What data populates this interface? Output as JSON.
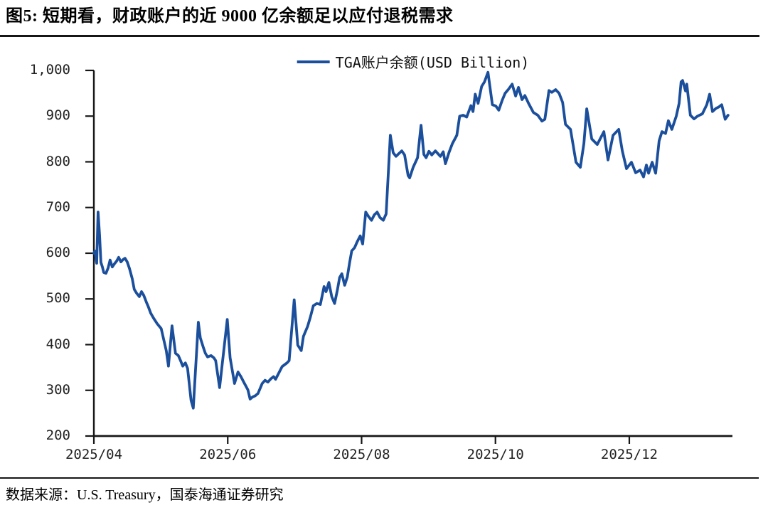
{
  "page": {
    "title": "图5: 短期看，财政账户的近 9000 亿余额足以应付退税需求",
    "source": "数据来源：U.S. Treasury，国泰海通证券研究"
  },
  "legend": {
    "label": "TGA账户余额(USD Billion)"
  },
  "colors": {
    "line": "#1B4F9C",
    "axis": "#161616",
    "tick_label": "#222222"
  },
  "chart_data": {
    "type": "line",
    "title": "图5: 短期看，财政账户的近 9000 亿余额足以应付退税需求",
    "xlabel": "",
    "ylabel": "",
    "grid": false,
    "legend_position": "top-center",
    "x_axis": {
      "unit": "days_since_2025-04-01",
      "range": [
        0,
        291
      ],
      "ticks": [
        {
          "day": 0,
          "label": "2025/04"
        },
        {
          "day": 61,
          "label": "2025/06"
        },
        {
          "day": 122,
          "label": "2025/08"
        },
        {
          "day": 183,
          "label": "2025/10"
        },
        {
          "day": 244,
          "label": "2025/12"
        }
      ]
    },
    "y_axis": {
      "range": [
        200,
        1000
      ],
      "tick_step": 100,
      "tick_labels": [
        "200",
        "300",
        "400",
        "500",
        "600",
        "700",
        "800",
        "900",
        "1,000"
      ]
    },
    "series": [
      {
        "name": "TGA账户余额(USD Billion)",
        "color": "#1B4F9C",
        "points": [
          [
            0,
            600
          ],
          [
            0.5,
            605
          ],
          [
            1.3,
            578
          ],
          [
            1.9,
            690
          ],
          [
            2.6,
            640
          ],
          [
            3.2,
            580
          ],
          [
            3.9,
            570
          ],
          [
            4.5,
            558
          ],
          [
            5.5,
            556
          ],
          [
            6.5,
            568
          ],
          [
            7.4,
            585
          ],
          [
            8.4,
            570
          ],
          [
            9.4,
            577
          ],
          [
            10.4,
            583
          ],
          [
            11.3,
            591
          ],
          [
            12.3,
            581
          ],
          [
            13.3,
            586
          ],
          [
            14.2,
            589
          ],
          [
            15.2,
            581
          ],
          [
            16.2,
            567
          ],
          [
            17.5,
            544
          ],
          [
            18.4,
            521
          ],
          [
            19.4,
            513
          ],
          [
            20.7,
            505
          ],
          [
            21.7,
            516
          ],
          [
            22.7,
            508
          ],
          [
            23.9,
            493
          ],
          [
            24.9,
            482
          ],
          [
            25.9,
            469
          ],
          [
            27.2,
            458
          ],
          [
            28.8,
            446
          ],
          [
            30.7,
            435
          ],
          [
            33,
            387
          ],
          [
            34,
            353
          ],
          [
            35.6,
            441
          ],
          [
            37.2,
            381
          ],
          [
            38.5,
            376
          ],
          [
            39.5,
            365
          ],
          [
            40.5,
            353
          ],
          [
            41.7,
            360
          ],
          [
            42.7,
            348
          ],
          [
            44.3,
            278
          ],
          [
            45.3,
            261
          ],
          [
            47.6,
            449
          ],
          [
            48.5,
            415
          ],
          [
            49.8,
            395
          ],
          [
            50.8,
            381
          ],
          [
            51.8,
            373
          ],
          [
            53.4,
            376
          ],
          [
            54.7,
            371
          ],
          [
            55.5,
            365
          ],
          [
            57.3,
            306
          ],
          [
            60.8,
            455
          ],
          [
            62.1,
            371
          ],
          [
            64.1,
            315
          ],
          [
            65.7,
            340
          ],
          [
            67,
            330
          ],
          [
            68.3,
            318
          ],
          [
            69.3,
            309
          ],
          [
            70.2,
            301
          ],
          [
            71.2,
            281
          ],
          [
            72.2,
            285
          ],
          [
            73.5,
            288
          ],
          [
            74.8,
            293
          ],
          [
            76.7,
            315
          ],
          [
            78,
            322
          ],
          [
            79.3,
            318
          ],
          [
            80.6,
            325
          ],
          [
            81.9,
            330
          ],
          [
            82.8,
            324
          ],
          [
            85.8,
            352
          ],
          [
            88,
            360
          ],
          [
            89,
            365
          ],
          [
            91.3,
            498
          ],
          [
            92.9,
            399
          ],
          [
            94.5,
            387
          ],
          [
            95.5,
            418
          ],
          [
            97.4,
            440
          ],
          [
            98.7,
            461
          ],
          [
            100,
            485
          ],
          [
            101.6,
            490
          ],
          [
            103.2,
            488
          ],
          [
            104.9,
            527
          ],
          [
            105.8,
            516
          ],
          [
            107.1,
            536
          ],
          [
            108.4,
            505
          ],
          [
            109.7,
            490
          ],
          [
            111,
            520
          ],
          [
            112,
            547
          ],
          [
            113,
            555
          ],
          [
            114.3,
            530
          ],
          [
            115.5,
            548
          ],
          [
            116.5,
            578
          ],
          [
            117.5,
            605
          ],
          [
            118.8,
            612
          ],
          [
            120,
            625
          ],
          [
            121.4,
            638
          ],
          [
            122.5,
            620
          ],
          [
            123.9,
            690
          ],
          [
            125.2,
            680
          ],
          [
            126.5,
            672
          ],
          [
            127.8,
            684
          ],
          [
            129.1,
            690
          ],
          [
            130.4,
            678
          ],
          [
            131.9,
            672
          ],
          [
            133.2,
            686
          ],
          [
            135.1,
            858
          ],
          [
            136.4,
            820
          ],
          [
            137.7,
            812
          ],
          [
            139,
            818
          ],
          [
            140.3,
            824
          ],
          [
            141.6,
            815
          ],
          [
            143.2,
            770
          ],
          [
            143.9,
            765
          ],
          [
            145.5,
            788
          ],
          [
            147.5,
            809
          ],
          [
            149.1,
            880
          ],
          [
            150.4,
            816
          ],
          [
            151.4,
            809
          ],
          [
            152.7,
            823
          ],
          [
            154,
            815
          ],
          [
            155.6,
            824
          ],
          [
            157.9,
            812
          ],
          [
            159.2,
            822
          ],
          [
            160.2,
            796
          ],
          [
            161.8,
            820
          ],
          [
            163.4,
            840
          ],
          [
            165.4,
            858
          ],
          [
            166.7,
            900
          ],
          [
            168.3,
            902
          ],
          [
            169.9,
            898
          ],
          [
            171.8,
            923
          ],
          [
            172.8,
            910
          ],
          [
            173.8,
            948
          ],
          [
            175.1,
            928
          ],
          [
            176.7,
            965
          ],
          [
            178,
            975
          ],
          [
            179.6,
            996
          ],
          [
            181.6,
            925
          ],
          [
            183.2,
            922
          ],
          [
            184.5,
            913
          ],
          [
            186.1,
            935
          ],
          [
            187.4,
            950
          ],
          [
            189,
            959
          ],
          [
            190.6,
            970
          ],
          [
            192.2,
            944
          ],
          [
            193.5,
            963
          ],
          [
            195.1,
            936
          ],
          [
            196.4,
            945
          ],
          [
            198.1,
            928
          ],
          [
            200.3,
            908
          ],
          [
            202.3,
            902
          ],
          [
            204.2,
            889
          ],
          [
            205.5,
            893
          ],
          [
            207.4,
            956
          ],
          [
            208.7,
            952
          ],
          [
            210.4,
            958
          ],
          [
            212,
            950
          ],
          [
            213.6,
            930
          ],
          [
            214.9,
            882
          ],
          [
            217.2,
            871
          ],
          [
            219.7,
            799
          ],
          [
            221.7,
            788
          ],
          [
            223.3,
            840
          ],
          [
            224.6,
            916
          ],
          [
            226.9,
            850
          ],
          [
            229.4,
            838
          ],
          [
            232.4,
            866
          ],
          [
            234.3,
            804
          ],
          [
            236.6,
            858
          ],
          [
            239.2,
            871
          ],
          [
            240.8,
            824
          ],
          [
            242.7,
            785
          ],
          [
            245,
            799
          ],
          [
            246.9,
            776
          ],
          [
            248.9,
            782
          ],
          [
            250.5,
            767
          ],
          [
            251.8,
            793
          ],
          [
            252.8,
            775
          ],
          [
            254.4,
            799
          ],
          [
            256,
            775
          ],
          [
            257.6,
            846
          ],
          [
            258.9,
            866
          ],
          [
            260.5,
            862
          ],
          [
            261.8,
            890
          ],
          [
            263.4,
            871
          ],
          [
            265.4,
            900
          ],
          [
            266.7,
            928
          ],
          [
            267.6,
            975
          ],
          [
            268.3,
            978
          ],
          [
            269.6,
            955
          ],
          [
            270.2,
            970
          ],
          [
            271.8,
            902
          ],
          [
            273.5,
            894
          ],
          [
            275.1,
            900
          ],
          [
            277.3,
            905
          ],
          [
            279.3,
            925
          ],
          [
            280.6,
            948
          ],
          [
            281.9,
            910
          ],
          [
            283.5,
            917
          ],
          [
            284.8,
            920
          ],
          [
            286.1,
            925
          ],
          [
            287.7,
            893
          ],
          [
            289,
            902
          ]
        ]
      }
    ]
  }
}
